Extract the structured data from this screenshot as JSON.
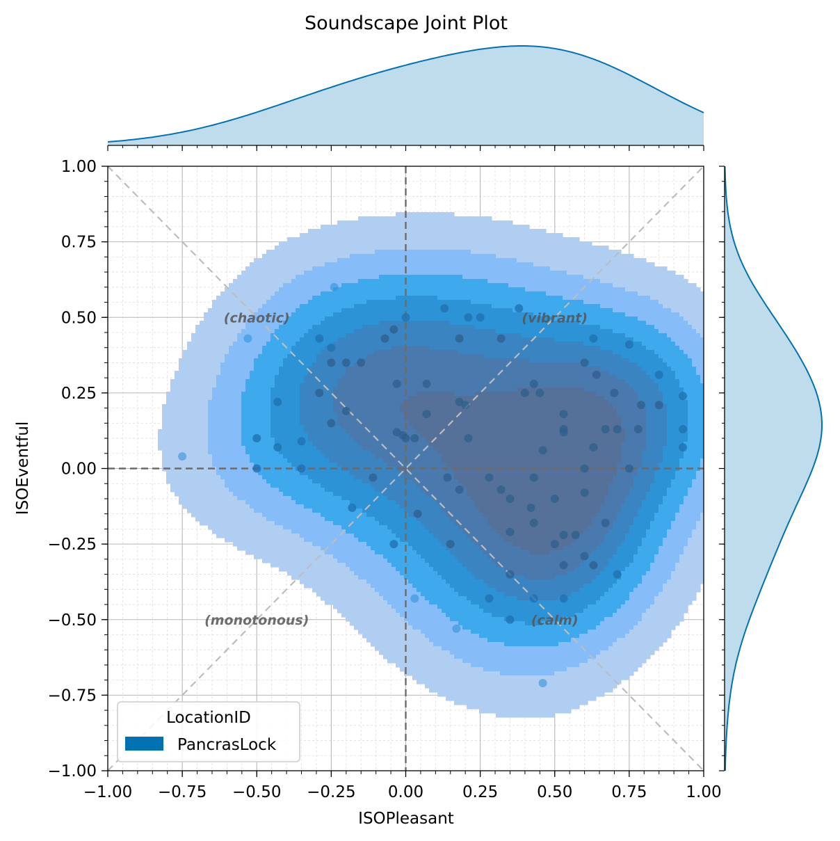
{
  "chart_data": {
    "type": "scatter",
    "title": "Soundscape Joint Plot",
    "xlabel": "ISOPleasant",
    "ylabel": "ISOEventful",
    "xlim": [
      -1,
      1
    ],
    "ylim": [
      -1,
      1
    ],
    "xticks": [
      -1,
      -0.75,
      -0.5,
      -0.25,
      0,
      0.25,
      0.5,
      0.75,
      1
    ],
    "yticks": [
      -1,
      -0.75,
      -0.5,
      -0.25,
      0,
      0.25,
      0.5,
      0.75,
      1
    ],
    "xtick_labels": [
      "−1.00",
      "−0.75",
      "−0.50",
      "−0.25",
      "0.00",
      "0.25",
      "0.50",
      "0.75",
      "1.00"
    ],
    "ytick_labels": [
      "−1.00",
      "−0.75",
      "−0.50",
      "−0.25",
      "0.00",
      "0.25",
      "0.50",
      "0.75",
      "1.00"
    ],
    "grid": true,
    "legend": {
      "title": "LocationID",
      "entries": [
        "PancrasLock"
      ],
      "position": "lower-left"
    },
    "quadrant_labels": [
      {
        "text": "(chaotic)",
        "x": -0.5,
        "y": 0.5
      },
      {
        "text": "(vibrant)",
        "x": 0.5,
        "y": 0.5
      },
      {
        "text": "(monotonous)",
        "x": -0.5,
        "y": -0.5
      },
      {
        "text": "(calm)",
        "x": 0.5,
        "y": -0.5
      }
    ],
    "marginal_x": "kde",
    "marginal_y": "kde",
    "series": [
      {
        "name": "PancrasLock",
        "color": "#0072b2",
        "points": [
          [
            -0.75,
            0.04
          ],
          [
            0.46,
            -0.71
          ],
          [
            -0.24,
            0.6
          ],
          [
            -0.53,
            0.43
          ],
          [
            -0.5,
            0.1
          ],
          [
            -0.5,
            0.0
          ],
          [
            -0.43,
            0.22
          ],
          [
            -0.43,
            0.07
          ],
          [
            -0.35,
            0.09
          ],
          [
            -0.35,
            0.0
          ],
          [
            -0.29,
            0.43
          ],
          [
            -0.29,
            0.25
          ],
          [
            -0.25,
            0.4
          ],
          [
            -0.25,
            0.35
          ],
          [
            -0.25,
            0.15
          ],
          [
            -0.2,
            0.35
          ],
          [
            -0.2,
            0.19
          ],
          [
            -0.18,
            -0.13
          ],
          [
            -0.15,
            0.35
          ],
          [
            -0.11,
            -0.03
          ],
          [
            -0.07,
            0.43
          ],
          [
            -0.04,
            0.46
          ],
          [
            -0.03,
            0.28
          ],
          [
            -0.03,
            0.12
          ],
          [
            -0.01,
            0.11
          ],
          [
            0.0,
            0.5
          ],
          [
            0.0,
            0.1
          ],
          [
            -0.04,
            -0.25
          ],
          [
            0.03,
            0.1
          ],
          [
            0.04,
            -0.15
          ],
          [
            0.03,
            -0.43
          ],
          [
            0.07,
            0.28
          ],
          [
            0.07,
            0.18
          ],
          [
            0.13,
            0.53
          ],
          [
            0.14,
            -0.03
          ],
          [
            0.15,
            -0.25
          ],
          [
            0.18,
            0.43
          ],
          [
            0.18,
            0.22
          ],
          [
            0.2,
            0.21
          ],
          [
            0.21,
            0.5
          ],
          [
            0.21,
            0.1
          ],
          [
            0.18,
            -0.07
          ],
          [
            0.17,
            -0.53
          ],
          [
            0.25,
            0.5
          ],
          [
            0.28,
            -0.03
          ],
          [
            0.28,
            -0.43
          ],
          [
            0.32,
            0.43
          ],
          [
            0.32,
            -0.07
          ],
          [
            0.35,
            -0.1
          ],
          [
            0.35,
            -0.21
          ],
          [
            0.35,
            -0.35
          ],
          [
            0.35,
            -0.5
          ],
          [
            0.38,
            0.53
          ],
          [
            0.4,
            0.25
          ],
          [
            0.42,
            -0.13
          ],
          [
            0.43,
            0.28
          ],
          [
            0.43,
            -0.03
          ],
          [
            0.43,
            -0.18
          ],
          [
            0.43,
            -0.43
          ],
          [
            0.45,
            0.25
          ],
          [
            0.46,
            0.06
          ],
          [
            0.5,
            -0.1
          ],
          [
            0.5,
            -0.25
          ],
          [
            0.53,
            0.18
          ],
          [
            0.53,
            0.13
          ],
          [
            0.53,
            0.12
          ],
          [
            0.53,
            -0.22
          ],
          [
            0.53,
            -0.32
          ],
          [
            0.53,
            -0.43
          ],
          [
            0.57,
            -0.22
          ],
          [
            0.6,
            0.35
          ],
          [
            0.6,
            0.0
          ],
          [
            0.6,
            -0.08
          ],
          [
            0.6,
            -0.29
          ],
          [
            0.63,
            0.43
          ],
          [
            0.63,
            0.07
          ],
          [
            0.63,
            -0.32
          ],
          [
            0.64,
            0.31
          ],
          [
            0.67,
            0.13
          ],
          [
            0.67,
            -0.18
          ],
          [
            0.7,
            0.25
          ],
          [
            0.71,
            0.13
          ],
          [
            0.71,
            -0.35
          ],
          [
            0.75,
            0.41
          ],
          [
            0.75,
            0.0
          ],
          [
            0.78,
            0.13
          ],
          [
            0.79,
            0.21
          ],
          [
            0.85,
            0.31
          ],
          [
            0.85,
            0.21
          ],
          [
            0.93,
            0.24
          ],
          [
            0.93,
            0.13
          ],
          [
            0.93,
            0.07
          ]
        ]
      }
    ]
  }
}
